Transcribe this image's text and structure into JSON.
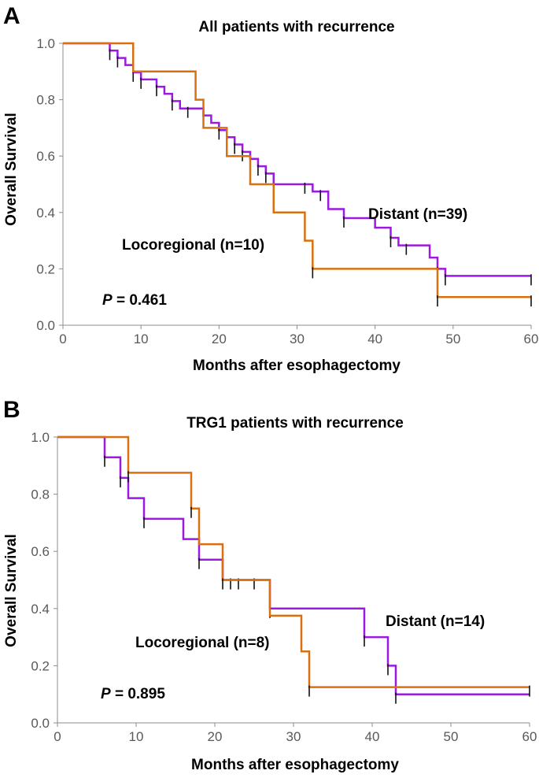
{
  "colors": {
    "distant": "#9b19e0",
    "locoregional": "#d9700f",
    "axis": "#8c8c8c"
  },
  "chart_data": [
    {
      "type": "line",
      "panel": "A",
      "title": "All patients with recurrence",
      "xlabel": "Months after esophagectomy",
      "ylabel": "Overall Survival",
      "xlim": [
        0,
        60
      ],
      "ylim": [
        0,
        1.0
      ],
      "xticks": [
        "0",
        "10",
        "20",
        "30",
        "40",
        "50",
        "60"
      ],
      "yticks": [
        "0.0",
        "0.2",
        "0.4",
        "0.6",
        "0.8",
        "1.0"
      ],
      "p_label": "P",
      "p_value": " = 0.461",
      "series": [
        {
          "name": "Distant (n=39)",
          "label": "Distant (n=39)",
          "color": "#9b19e0",
          "steps": [
            [
              0,
              1.0
            ],
            [
              6,
              0.974
            ],
            [
              7,
              0.948
            ],
            [
              8,
              0.923
            ],
            [
              9,
              0.897
            ],
            [
              10,
              0.872
            ],
            [
              11,
              0.872
            ],
            [
              12,
              0.846
            ],
            [
              13,
              0.821
            ],
            [
              14,
              0.795
            ],
            [
              15,
              0.769
            ],
            [
              16,
              0.769
            ],
            [
              18,
              0.744
            ],
            [
              19,
              0.718
            ],
            [
              20,
              0.692
            ],
            [
              21,
              0.667
            ],
            [
              22,
              0.641
            ],
            [
              23,
              0.615
            ],
            [
              24,
              0.59
            ],
            [
              25,
              0.564
            ],
            [
              26,
              0.538
            ],
            [
              27,
              0.5
            ],
            [
              31,
              0.5
            ],
            [
              32,
              0.474
            ],
            [
              34,
              0.412
            ],
            [
              36,
              0.38
            ],
            [
              39,
              0.38
            ],
            [
              40,
              0.346
            ],
            [
              42,
              0.31
            ],
            [
              43,
              0.283
            ],
            [
              47,
              0.24
            ],
            [
              48,
              0.2
            ],
            [
              49,
              0.175
            ],
            [
              60,
              0.175
            ]
          ],
          "censors": [
            [
              6,
              0.974
            ],
            [
              7,
              0.948
            ],
            [
              9,
              0.897
            ],
            [
              10,
              0.872
            ],
            [
              12,
              0.846
            ],
            [
              14,
              0.795
            ],
            [
              16,
              0.769
            ],
            [
              18,
              0.744
            ],
            [
              20,
              0.692
            ],
            [
              22,
              0.641
            ],
            [
              23,
              0.615
            ],
            [
              25,
              0.564
            ],
            [
              26,
              0.538
            ],
            [
              31,
              0.5
            ],
            [
              33,
              0.474
            ],
            [
              36,
              0.38
            ],
            [
              42,
              0.31
            ],
            [
              44,
              0.283
            ],
            [
              48,
              0.2
            ],
            [
              49,
              0.175
            ],
            [
              60,
              0.175
            ]
          ]
        },
        {
          "name": "Locoregional (n=10)",
          "label": "Locoregional (n=10)",
          "color": "#d9700f",
          "steps": [
            [
              0,
              1.0
            ],
            [
              9,
              1.0
            ],
            [
              9,
              0.9
            ],
            [
              17,
              0.9
            ],
            [
              17,
              0.8
            ],
            [
              18,
              0.7
            ],
            [
              21,
              0.6
            ],
            [
              24,
              0.5
            ],
            [
              27,
              0.4
            ],
            [
              31,
              0.3
            ],
            [
              32,
              0.2
            ],
            [
              48,
              0.2
            ],
            [
              48,
              0.1
            ],
            [
              60,
              0.1
            ]
          ],
          "censors": [
            [
              32,
              0.2
            ],
            [
              48,
              0.1
            ],
            [
              60,
              0.1
            ]
          ]
        }
      ]
    },
    {
      "type": "line",
      "panel": "B",
      "title": "TRG1 patients with recurrence",
      "xlabel": "Months after esophagectomy",
      "ylabel": "Overall Survival",
      "xlim": [
        0,
        60
      ],
      "ylim": [
        0,
        1.0
      ],
      "xticks": [
        "0",
        "10",
        "20",
        "30",
        "40",
        "50",
        "60"
      ],
      "yticks": [
        "0.0",
        "0.2",
        "0.4",
        "0.6",
        "0.8",
        "1.0"
      ],
      "p_label": "P",
      "p_value": " = 0.895",
      "series": [
        {
          "name": "Distant (n=14)",
          "label": "Distant (n=14)",
          "color": "#9b19e0",
          "steps": [
            [
              0,
              1.0
            ],
            [
              6,
              1.0
            ],
            [
              6,
              0.929
            ],
            [
              8,
              0.857
            ],
            [
              9,
              0.786
            ],
            [
              11,
              0.714
            ],
            [
              16,
              0.643
            ],
            [
              18,
              0.571
            ],
            [
              21,
              0.5
            ],
            [
              27,
              0.4
            ],
            [
              39,
              0.3
            ],
            [
              42,
              0.2
            ],
            [
              43,
              0.1
            ],
            [
              60,
              0.1
            ]
          ],
          "censors": [
            [
              6,
              0.929
            ],
            [
              8,
              0.857
            ],
            [
              11,
              0.714
            ],
            [
              18,
              0.571
            ],
            [
              22,
              0.5
            ],
            [
              23,
              0.5
            ],
            [
              25,
              0.5
            ],
            [
              27,
              0.4
            ],
            [
              39,
              0.3
            ],
            [
              42,
              0.2
            ],
            [
              43,
              0.1
            ]
          ]
        },
        {
          "name": "Locoregional (n=8)",
          "label": "Locoregional (n=8)",
          "color": "#d9700f",
          "steps": [
            [
              0,
              1.0
            ],
            [
              9,
              1.0
            ],
            [
              9,
              0.875
            ],
            [
              17,
              0.875
            ],
            [
              17,
              0.75
            ],
            [
              18,
              0.625
            ],
            [
              21,
              0.5
            ],
            [
              27,
              0.5
            ],
            [
              27,
              0.375
            ],
            [
              31,
              0.25
            ],
            [
              32,
              0.125
            ],
            [
              60,
              0.125
            ]
          ],
          "censors": [
            [
              9,
              0.875
            ],
            [
              17,
              0.75
            ],
            [
              21,
              0.5
            ],
            [
              32,
              0.125
            ],
            [
              60,
              0.125
            ]
          ]
        }
      ]
    }
  ]
}
